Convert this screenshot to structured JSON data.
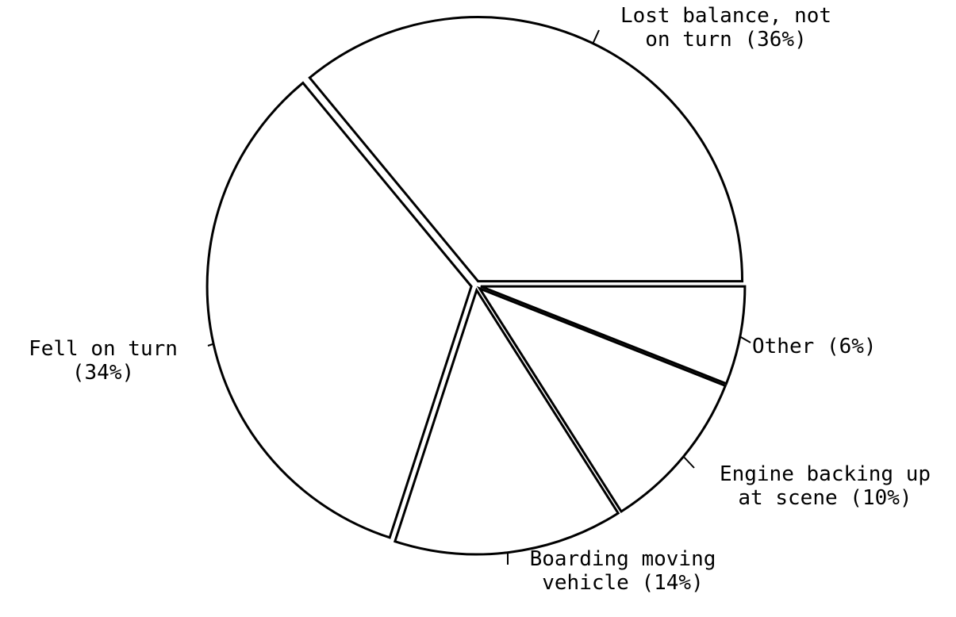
{
  "chart_data": {
    "type": "pie",
    "categories": [
      "Lost balance, not on turn",
      "Fell on turn",
      "Boarding moving vehicle",
      "Engine backing up at scene",
      "Other"
    ],
    "values": [
      36,
      34,
      14,
      10,
      6
    ],
    "value_labels": [
      "(36%)",
      "(34%)",
      "(14%)",
      "(10%)",
      "(6%)"
    ],
    "color": "#ffffff"
  }
}
